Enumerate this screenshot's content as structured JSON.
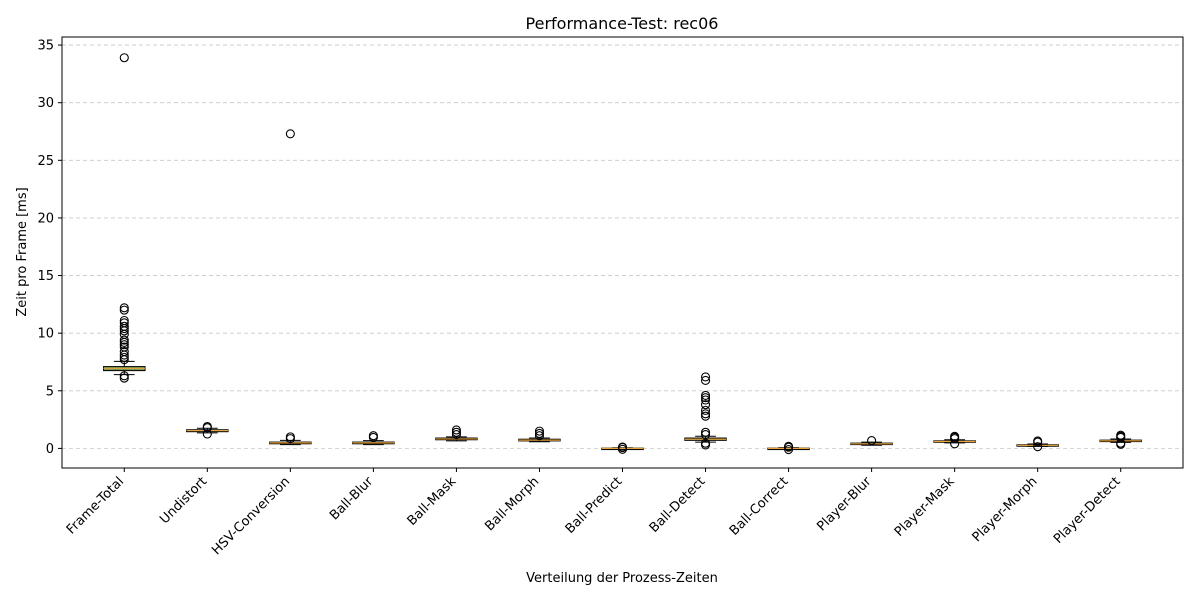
{
  "chart_data": {
    "type": "box",
    "title": "Performance-Test: rec06",
    "xlabel": "Verteilung der Prozess-Zeiten",
    "ylabel": "Zeit pro Frame [ms]",
    "ylim": [
      -1.7,
      35.7
    ],
    "yticks": [
      0,
      5,
      10,
      15,
      20,
      25,
      30,
      35
    ],
    "grid": "y-dashed",
    "colors": {
      "box_fill": "#7a9a5c",
      "median": "#e8a33a",
      "edge": "#000000",
      "grid": "#c8c8c8"
    },
    "categories": [
      "Frame-Total",
      "Undistort",
      "HSV-Conversion",
      "Ball-Blur",
      "Ball-Mask",
      "Ball-Morph",
      "Ball-Predict",
      "Ball-Detect",
      "Ball-Correct",
      "Player-Blur",
      "Player-Mask",
      "Player-Morph",
      "Player-Detect"
    ],
    "boxes": [
      {
        "q1": 6.75,
        "median": 6.95,
        "q3": 7.1,
        "whislo": 6.4,
        "whishi": 7.55,
        "fliers": [
          33.9,
          12.2,
          12.0,
          11.1,
          10.9,
          10.6,
          10.4,
          10.2,
          9.9,
          9.4,
          9.2,
          9.0,
          8.8,
          8.4,
          8.1,
          7.9,
          7.7,
          6.3,
          6.1
        ]
      },
      {
        "q1": 1.45,
        "median": 1.55,
        "q3": 1.62,
        "whislo": 1.35,
        "whishi": 1.75,
        "fliers": [
          1.9,
          1.8,
          1.25
        ]
      },
      {
        "q1": 0.4,
        "median": 0.48,
        "q3": 0.55,
        "whislo": 0.33,
        "whishi": 0.7,
        "fliers": [
          27.3,
          1.0,
          0.85
        ]
      },
      {
        "q1": 0.4,
        "median": 0.48,
        "q3": 0.55,
        "whislo": 0.33,
        "whishi": 0.68,
        "fliers": [
          1.1,
          0.95
        ]
      },
      {
        "q1": 0.75,
        "median": 0.82,
        "q3": 0.9,
        "whislo": 0.65,
        "whishi": 1.0,
        "fliers": [
          1.6,
          1.4,
          1.2
        ]
      },
      {
        "q1": 0.65,
        "median": 0.72,
        "q3": 0.8,
        "whislo": 0.58,
        "whishi": 0.9,
        "fliers": [
          1.5,
          1.3,
          1.1
        ]
      },
      {
        "q1": -0.02,
        "median": 0.0,
        "q3": 0.03,
        "whislo": -0.05,
        "whishi": 0.06,
        "fliers": [
          0.12,
          0.08,
          -0.08
        ]
      },
      {
        "q1": 0.7,
        "median": 0.8,
        "q3": 0.9,
        "whislo": 0.55,
        "whishi": 1.05,
        "fliers": [
          6.2,
          5.9,
          4.6,
          4.4,
          4.2,
          3.8,
          3.3,
          3.0,
          2.8,
          1.4,
          1.2,
          0.45,
          0.3
        ]
      },
      {
        "q1": -0.03,
        "median": 0.0,
        "q3": 0.03,
        "whislo": -0.06,
        "whishi": 0.07,
        "fliers": [
          0.18,
          0.1,
          -0.1
        ]
      },
      {
        "q1": 0.33,
        "median": 0.4,
        "q3": 0.46,
        "whislo": 0.27,
        "whishi": 0.55,
        "fliers": [
          0.68
        ]
      },
      {
        "q1": 0.55,
        "median": 0.6,
        "q3": 0.66,
        "whislo": 0.48,
        "whishi": 0.75,
        "fliers": [
          1.05,
          0.95,
          0.85,
          0.4
        ]
      },
      {
        "q1": 0.22,
        "median": 0.27,
        "q3": 0.32,
        "whislo": 0.18,
        "whishi": 0.38,
        "fliers": [
          0.65,
          0.55,
          0.15
        ]
      },
      {
        "q1": 0.6,
        "median": 0.66,
        "q3": 0.72,
        "whislo": 0.52,
        "whishi": 0.82,
        "fliers": [
          1.15,
          1.05,
          0.95,
          0.45,
          0.35
        ]
      }
    ]
  }
}
